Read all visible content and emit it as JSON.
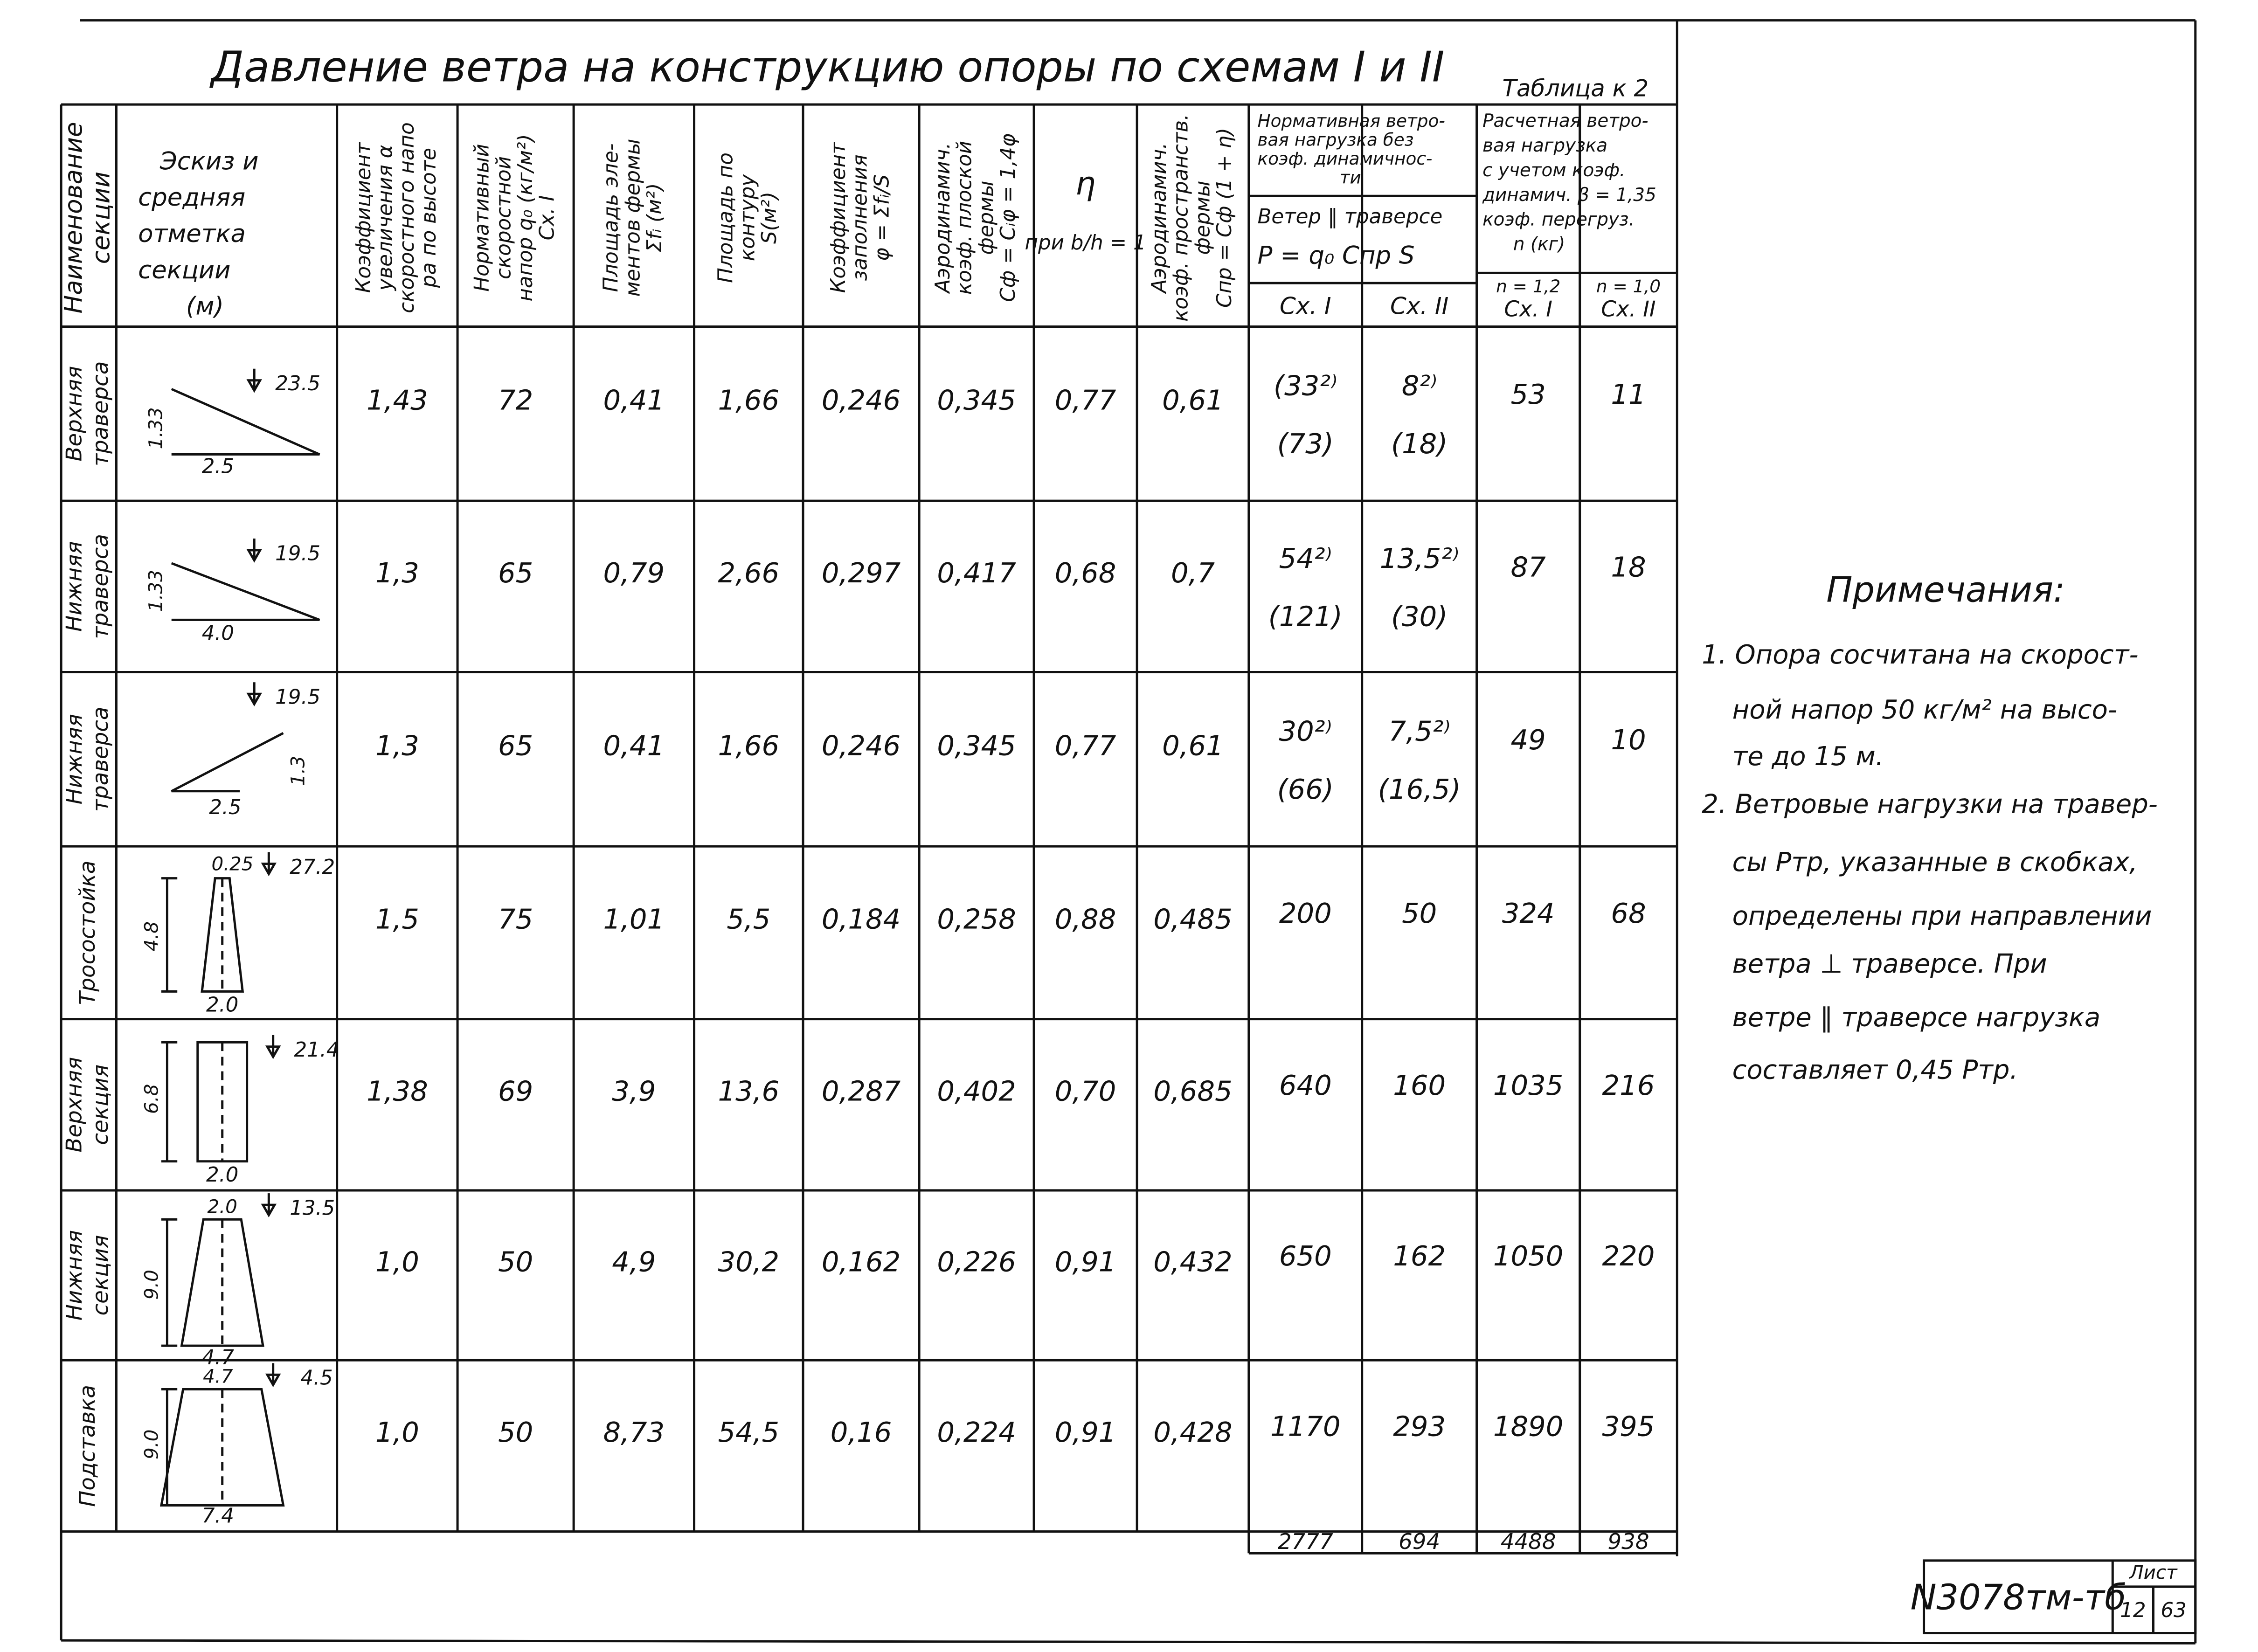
{
  "title": "Давление ветра на конструкцию опоры по схемам I и II",
  "table_number": "Таблица к 2",
  "header": {
    "columns": [
      [
        "Наименование",
        "секции"
      ],
      [
        "Эскиз  и",
        "средняя",
        "отметка",
        "секции",
        "(м)"
      ],
      [
        "Коэффициент",
        "увеличения α",
        "скоростного напо",
        "ра по высоте"
      ],
      [
        "Нормативный",
        "скоростной",
        "напор q₀ (кг/м²)",
        "Сх. I"
      ],
      [
        "Площадь эле-",
        "ментов фермы",
        "Σfᵢ (м²)"
      ],
      [
        "Площадь по",
        "контуру",
        "S(м²)"
      ],
      [
        "Коэффициент",
        "заполнения",
        "φ = Σfᵢ/S"
      ],
      [
        "Аэродинамич.",
        "коэф. плоской",
        "фермы",
        "Сф = Сᵢφ = 1,4φ"
      ],
      [
        "η",
        "при b/h = 1"
      ],
      [
        "Аэродинамич.",
        "коэф. пространств.",
        "фермы",
        "Спр = Сф (1 + η)"
      ]
    ],
    "normative": {
      "lines": [
        "Нормативная ветро-",
        "вая нагрузка без",
        "коэф. динамичнос-",
        "ти"
      ],
      "sub": [
        "Ветер ‖ траверсе",
        "P = q₀ Cпр S"
      ],
      "schemes": [
        "Сх. I",
        "Сх. II"
      ]
    },
    "design": {
      "lines": [
        "Расчетная ветро-",
        "вая нагрузка",
        "с учетом коэф.",
        "динамич. β = 1,35",
        "коэф. перегруз.",
        "n (кг)"
      ],
      "schemes": [
        [
          "n = 1,2",
          "Сх. I"
        ],
        [
          "n = 1,0",
          "Сх. II"
        ]
      ]
    }
  },
  "rows": [
    {
      "name": [
        "Верхняя",
        "траверса"
      ],
      "sketch": {
        "elevation": "23.5",
        "height": "1.33",
        "width": "2.5"
      },
      "cells": [
        "1,43",
        "72",
        "0,41",
        "1,66",
        "0,246",
        "0,345",
        "0,77",
        "0,61"
      ],
      "normative": [
        [
          "(33²⁾",
          "(73)"
        ],
        [
          "8²⁾",
          "(18)"
        ]
      ],
      "design": [
        "53",
        "11"
      ]
    },
    {
      "name": [
        "Нижняя",
        "траверса"
      ],
      "sketch": {
        "elevation": "19.5",
        "height": "1.33",
        "width": "4.0"
      },
      "cells": [
        "1,3",
        "65",
        "0,79",
        "2,66",
        "0,297",
        "0,417",
        "0,68",
        "0,7"
      ],
      "normative": [
        [
          "54²⁾",
          "(121)"
        ],
        [
          "13,5²⁾",
          "(30)"
        ]
      ],
      "design": [
        "87",
        "18"
      ]
    },
    {
      "name": [
        "Нижняя",
        "траверса"
      ],
      "sketch": {
        "elevation": "19.5",
        "height": "1.3",
        "width": "2.5"
      },
      "cells": [
        "1,3",
        "65",
        "0,41",
        "1,66",
        "0,246",
        "0,345",
        "0,77",
        "0,61"
      ],
      "normative": [
        [
          "30²⁾",
          "(66)"
        ],
        [
          "7,5²⁾",
          "(16,5)"
        ]
      ],
      "design": [
        "49",
        "10"
      ]
    },
    {
      "name": [
        "Тросостойка"
      ],
      "sketch": {
        "elevation": "27.2",
        "height": "4.8",
        "width": "2.0",
        "top": "0.25"
      },
      "cells": [
        "1,5",
        "75",
        "1,01",
        "5,5",
        "0,184",
        "0,258",
        "0,88",
        "0,485"
      ],
      "normative": [
        "200",
        "50"
      ],
      "design": [
        "324",
        "68"
      ]
    },
    {
      "name": [
        "Верхняя",
        "секция"
      ],
      "sketch": {
        "elevation": "21.4",
        "height": "6.8",
        "width": "2.0"
      },
      "cells": [
        "1,38",
        "69",
        "3,9",
        "13,6",
        "0,287",
        "0,402",
        "0,70",
        "0,685"
      ],
      "normative": [
        "640",
        "160"
      ],
      "design": [
        "1035",
        "216"
      ]
    },
    {
      "name": [
        "Нижняя",
        "секция"
      ],
      "sketch": {
        "elevation": "13.5",
        "height": "9.0",
        "width": "4.7",
        "top": "2.0"
      },
      "cells": [
        "1,0",
        "50",
        "4,9",
        "30,2",
        "0,162",
        "0,226",
        "0,91",
        "0,432"
      ],
      "normative": [
        "650",
        "162"
      ],
      "design": [
        "1050",
        "220"
      ]
    },
    {
      "name": [
        "Подставка"
      ],
      "sketch": {
        "elevation": "4.5",
        "height": "9.0",
        "width": "7.4",
        "top": "4.7"
      },
      "cells": [
        "1,0",
        "50",
        "8,73",
        "54,5",
        "0,16",
        "0,224",
        "0,91",
        "0,428"
      ],
      "normative": [
        "1170",
        "293"
      ],
      "design": [
        "1890",
        "395"
      ]
    }
  ],
  "totals": [
    "2777",
    "694",
    "4488",
    "938"
  ],
  "notes": {
    "title": "Примечания:",
    "items": [
      [
        "1. Опора сосчитана на скорост-",
        "ной напор 50 кг/м² на высо-",
        "те до 15 м."
      ],
      [
        "2. Ветровые нагрузки на травер-",
        "сы Pтр, указанные в скобках,",
        "определены при направлении",
        "ветра ⊥ траверсе.   При",
        "ветре ‖ траверсе  нагрузка",
        "составляет   0,45 Pтр."
      ]
    ]
  },
  "stamp": {
    "code": "N3078тм-тб",
    "sheet_label": "Лист",
    "sheet": "12",
    "sheets": "63"
  }
}
